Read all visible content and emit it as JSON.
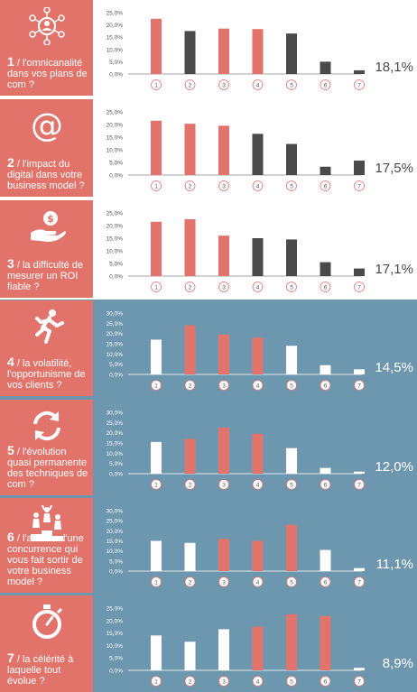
{
  "colors": {
    "accent": "#e2736a",
    "dark_bar": "#4a4a4a",
    "band": "#6d97ae",
    "white_bar": "#ffffff"
  },
  "chart_data": [
    {
      "type": "bar",
      "number": "1",
      "caption": "/ l'omnicanalité dans vos plans de com ?",
      "icon": "network-person-icon",
      "percent_label": "18,1%",
      "categories": [
        "1",
        "2",
        "3",
        "4",
        "5",
        "6",
        "7"
      ],
      "values": [
        22.5,
        17.5,
        18.5,
        18.3,
        16.5,
        5.0,
        1.5
      ],
      "highlight": [
        true,
        false,
        true,
        true,
        false,
        false,
        false
      ],
      "ylim": [
        0,
        25
      ],
      "ytick_labels": [
        "0,0%",
        "5,0%",
        "10,0%",
        "15,0%",
        "20,0%",
        "25,0%"
      ],
      "theme": "light"
    },
    {
      "type": "bar",
      "number": "2",
      "caption": "/ l'impact du digital dans votre business model ?",
      "icon": "at-sign-icon",
      "percent_label": "17,5%",
      "categories": [
        "1",
        "2",
        "3",
        "4",
        "5",
        "6",
        "7"
      ],
      "values": [
        21.5,
        20.3,
        19.5,
        16.3,
        12.3,
        3.3,
        5.7
      ],
      "highlight": [
        true,
        true,
        true,
        false,
        false,
        false,
        false
      ],
      "ylim": [
        0,
        25
      ],
      "ytick_labels": [
        "0,0%",
        "5,0%",
        "10,0%",
        "15,0%",
        "20,0%",
        "25,0%"
      ],
      "theme": "light"
    },
    {
      "type": "bar",
      "number": "3",
      "caption": "/ la difficulté de mesurer un ROI fiable ?",
      "icon": "hand-coin-icon",
      "percent_label": "17,1%",
      "categories": [
        "1",
        "2",
        "3",
        "4",
        "5",
        "6",
        "7"
      ],
      "values": [
        21.5,
        22.5,
        16.0,
        15.0,
        14.5,
        5.5,
        3.0
      ],
      "highlight": [
        true,
        true,
        true,
        false,
        false,
        false,
        false
      ],
      "ylim": [
        0,
        25
      ],
      "ytick_labels": [
        "0,0%",
        "5,0%",
        "10,0%",
        "15,0%",
        "20,0%",
        "25,0%"
      ],
      "theme": "light"
    },
    {
      "type": "bar",
      "number": "4",
      "caption": "/ la volatilité, l'opportunisme de vos clients ?",
      "icon": "running-person-icon",
      "percent_label": "14,5%",
      "categories": [
        "1",
        "2",
        "3",
        "4",
        "5",
        "6",
        "7"
      ],
      "values": [
        17.0,
        24.0,
        19.5,
        18.0,
        14.0,
        4.5,
        2.5
      ],
      "highlight": [
        false,
        true,
        true,
        true,
        false,
        false,
        false
      ],
      "ylim": [
        0,
        30
      ],
      "ytick_labels": [
        "0,0%",
        "5,0%",
        "10,0%",
        "15,0%",
        "20,0%",
        "25,0%",
        "30,0%"
      ],
      "theme": "dark"
    },
    {
      "type": "bar",
      "number": "5",
      "caption": "/ l'évolution quasi permanente des techniques de com ?",
      "icon": "refresh-cycle-icon",
      "percent_label": "12,0%",
      "categories": [
        "1",
        "2",
        "3",
        "4",
        "5",
        "6",
        "7"
      ],
      "values": [
        15.5,
        17.0,
        22.5,
        19.5,
        12.5,
        2.8,
        1.0
      ],
      "highlight": [
        false,
        true,
        true,
        true,
        false,
        false,
        false
      ],
      "ylim": [
        0,
        30
      ],
      "ytick_labels": [
        "0,0%",
        "5,0%",
        "10,0%",
        "15,0%",
        "20,0%",
        "25,0%",
        "30,0%"
      ],
      "theme": "dark"
    },
    {
      "type": "bar",
      "number": "6",
      "caption": "/ l'arrivée d'une concurrence qui vous fait sortir de votre business model ?",
      "icon": "podium-people-icon",
      "percent_label": "11,1%",
      "categories": [
        "1",
        "2",
        "3",
        "4",
        "5",
        "6",
        "7"
      ],
      "values": [
        15.0,
        14.0,
        16.0,
        15.0,
        23.0,
        10.5,
        1.5
      ],
      "highlight": [
        false,
        false,
        true,
        true,
        true,
        false,
        false
      ],
      "ylim": [
        0,
        30
      ],
      "ytick_labels": [
        "0,0%",
        "5,0%",
        "10,0%",
        "15,0%",
        "20,0%",
        "25,0%",
        "30,0%"
      ],
      "theme": "dark"
    },
    {
      "type": "bar",
      "number": "7",
      "caption": "/ la célérité à laquelle tout évolue ?",
      "icon": "stopwatch-icon",
      "percent_label": "8,9%",
      "categories": [
        "1",
        "2",
        "3",
        "4",
        "5",
        "6",
        "7"
      ],
      "values": [
        14.0,
        11.5,
        16.5,
        17.5,
        22.5,
        21.8,
        1.0
      ],
      "highlight": [
        false,
        false,
        false,
        true,
        true,
        true,
        false
      ],
      "ylim": [
        0,
        25
      ],
      "ytick_labels": [
        "0,0%",
        "5,0%",
        "10,0%",
        "15,0%",
        "20,0%",
        "25,0%"
      ],
      "theme": "dark"
    }
  ]
}
